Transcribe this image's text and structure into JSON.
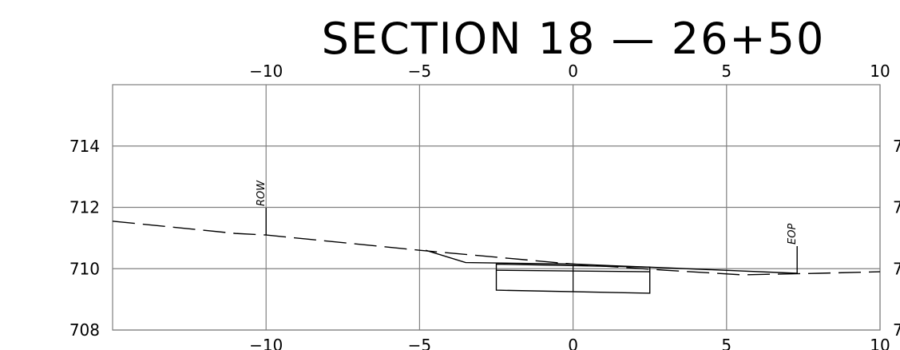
{
  "title": "SECTION 18 — 26+50",
  "chart_data": {
    "type": "line",
    "title": "SECTION 18 — 26+50",
    "xlim": [
      -15,
      10
    ],
    "ylim": [
      708,
      716
    ],
    "x_ticks": [
      -10,
      -5,
      0,
      5,
      10
    ],
    "x_tick_labels": [
      "−10",
      "−5",
      "0",
      "5",
      "10"
    ],
    "y_ticks": [
      708,
      710,
      712,
      714
    ],
    "y_tick_labels": [
      "708",
      "710",
      "712",
      "714"
    ],
    "right_y_tick_labels": [
      "7",
      "7",
      "7",
      "7"
    ],
    "grid": true,
    "series": [
      {
        "style": "dashed",
        "points": [
          [
            -15,
            711.55
          ],
          [
            -11,
            711.15
          ],
          [
            -10,
            711.1
          ],
          [
            -5,
            710.6
          ],
          [
            0,
            710.15
          ],
          [
            3,
            709.95
          ],
          [
            5.5,
            709.8
          ],
          [
            8,
            709.85
          ],
          [
            10,
            709.9
          ]
        ]
      },
      {
        "style": "solid",
        "points": [
          [
            -4.8,
            710.6
          ],
          [
            -3.5,
            710.2
          ],
          [
            0,
            710.15
          ],
          [
            2.5,
            710.05
          ],
          [
            7.3,
            709.85
          ]
        ]
      }
    ],
    "rectangles": [
      {
        "x0": -2.5,
        "x1": 2.5,
        "top": [
          709.95,
          709.9
        ],
        "mid": [
          710.15,
          710.05
        ],
        "bottom": [
          709.3,
          709.2
        ]
      }
    ],
    "annotations": [
      {
        "text": "ROW",
        "x": -10,
        "y": 711.1
      },
      {
        "text": "EOP",
        "x": 7.3,
        "y": 709.85
      }
    ]
  }
}
